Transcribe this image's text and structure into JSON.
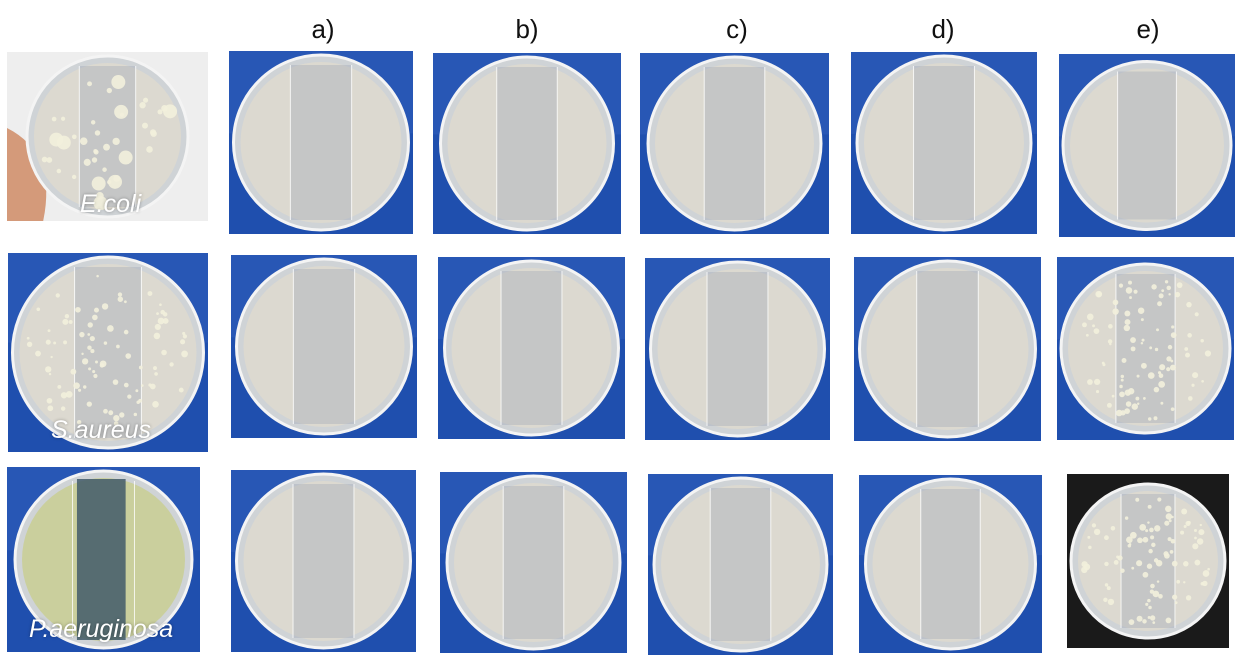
{
  "columns": [
    "a)",
    "b)",
    "c)",
    "d)",
    "e)"
  ],
  "rows": [
    {
      "species": "E.coli",
      "control": {
        "background": "hand",
        "growth": "spotted"
      },
      "plates": [
        {
          "background": "blue",
          "growth": "none"
        },
        {
          "background": "blue",
          "growth": "none"
        },
        {
          "background": "blue",
          "growth": "none"
        },
        {
          "background": "blue",
          "growth": "none"
        },
        {
          "background": "blue",
          "growth": "none"
        }
      ]
    },
    {
      "species": "S.aureus",
      "control": {
        "background": "blue",
        "growth": "colonies"
      },
      "plates": [
        {
          "background": "blue",
          "growth": "none"
        },
        {
          "background": "blue",
          "growth": "none"
        },
        {
          "background": "blue",
          "growth": "none"
        },
        {
          "background": "blue",
          "growth": "none"
        },
        {
          "background": "blue",
          "growth": "colonies"
        }
      ]
    },
    {
      "species": "P.aeruginosa",
      "control": {
        "background": "blue",
        "growth": "lawn"
      },
      "plates": [
        {
          "background": "blue",
          "growth": "none"
        },
        {
          "background": "blue",
          "growth": "none"
        },
        {
          "background": "blue",
          "growth": "none"
        },
        {
          "background": "blue",
          "growth": "none"
        },
        {
          "background": "dark",
          "growth": "colonies"
        }
      ]
    }
  ],
  "colors": {
    "background_blue": "#1f4fae",
    "background_dark": "#1a1a1a",
    "agar": "#dcd9d0",
    "lawn": "#c9cf9a",
    "colony": "#f2efdc"
  }
}
